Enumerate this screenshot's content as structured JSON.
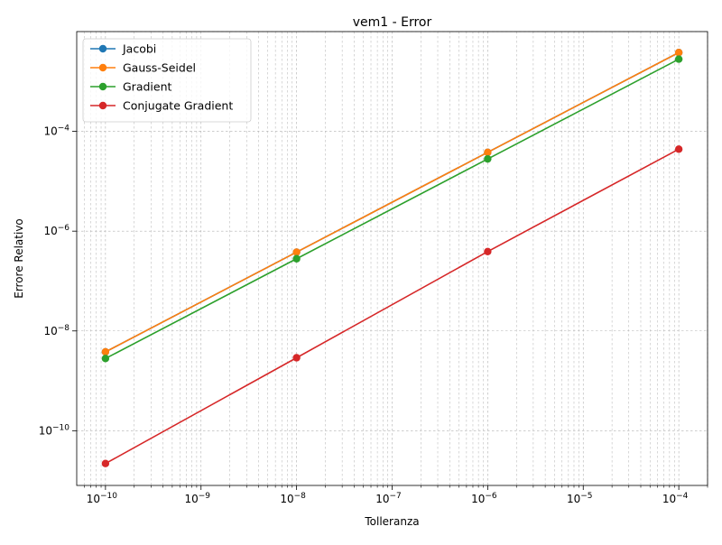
{
  "chart_data": {
    "type": "line",
    "title": "vem1 - Error",
    "xlabel": "Tolleranza",
    "ylabel": "Errore Relativo",
    "xscale": "log",
    "yscale": "log",
    "xlim": [
      5e-11,
      0.0002
    ],
    "ylim": [
      8e-12,
      0.01
    ],
    "x": [
      1e-10,
      1e-08,
      1e-06,
      0.0001
    ],
    "xticks": [
      {
        "value": 1e-10,
        "mantissa": "10",
        "exp": "−10"
      },
      {
        "value": 1e-09,
        "mantissa": "10",
        "exp": "−9"
      },
      {
        "value": 1e-08,
        "mantissa": "10",
        "exp": "−8"
      },
      {
        "value": 1e-07,
        "mantissa": "10",
        "exp": "−7"
      },
      {
        "value": 1e-06,
        "mantissa": "10",
        "exp": "−6"
      },
      {
        "value": 1e-05,
        "mantissa": "10",
        "exp": "−5"
      },
      {
        "value": 0.0001,
        "mantissa": "10",
        "exp": "−4"
      }
    ],
    "yticks": [
      {
        "value": 1e-10,
        "mantissa": "10",
        "exp": "−10"
      },
      {
        "value": 1e-08,
        "mantissa": "10",
        "exp": "−8"
      },
      {
        "value": 1e-06,
        "mantissa": "10",
        "exp": "−6"
      },
      {
        "value": 0.0001,
        "mantissa": "10",
        "exp": "−4"
      }
    ],
    "grid": true,
    "legend_position": "top-left",
    "series": [
      {
        "name": "Jacobi",
        "color": "#1f77b4",
        "values": [
          3.8e-09,
          3.8e-07,
          3.8e-05,
          0.0038
        ]
      },
      {
        "name": "Gauss-Seidel",
        "color": "#ff7f0e",
        "values": [
          3.8e-09,
          3.8e-07,
          3.8e-05,
          0.0038
        ]
      },
      {
        "name": "Gradient",
        "color": "#2ca02c",
        "values": [
          2.8e-09,
          2.8e-07,
          2.8e-05,
          0.0028
        ]
      },
      {
        "name": "Conjugate Gradient",
        "color": "#d62728",
        "values": [
          2.2e-11,
          2.9e-09,
          3.9e-07,
          4.4e-05
        ]
      }
    ]
  }
}
